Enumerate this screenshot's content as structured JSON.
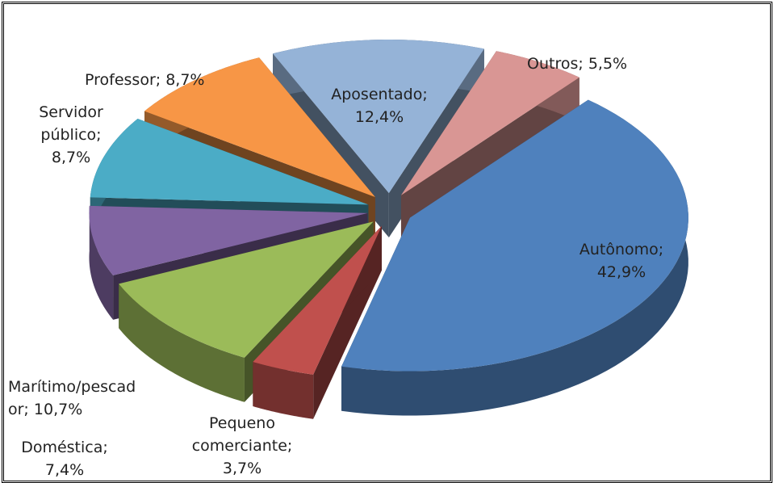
{
  "chart_data": {
    "type": "pie3d",
    "categories": [
      "Outros;",
      "Autônomo;",
      "Pequeno comerciante;",
      "Marítimo/pescador;",
      "Doméstica;",
      "Servidor público;",
      "Professor;",
      "Aposentado;"
    ],
    "values": [
      5.5,
      42.9,
      3.7,
      10.7,
      7.4,
      8.7,
      8.7,
      12.4
    ],
    "value_labels": [
      "5,5%",
      "42,9%",
      "3,7%",
      "10,7%",
      "7,4%",
      "8,7%",
      "8,7%",
      "12,4%"
    ],
    "colors": [
      "#d99694",
      "#4f81bd",
      "#c0504d",
      "#9bbb59",
      "#8064a2",
      "#4bacc6",
      "#f79646",
      "#95b3d7"
    ]
  }
}
